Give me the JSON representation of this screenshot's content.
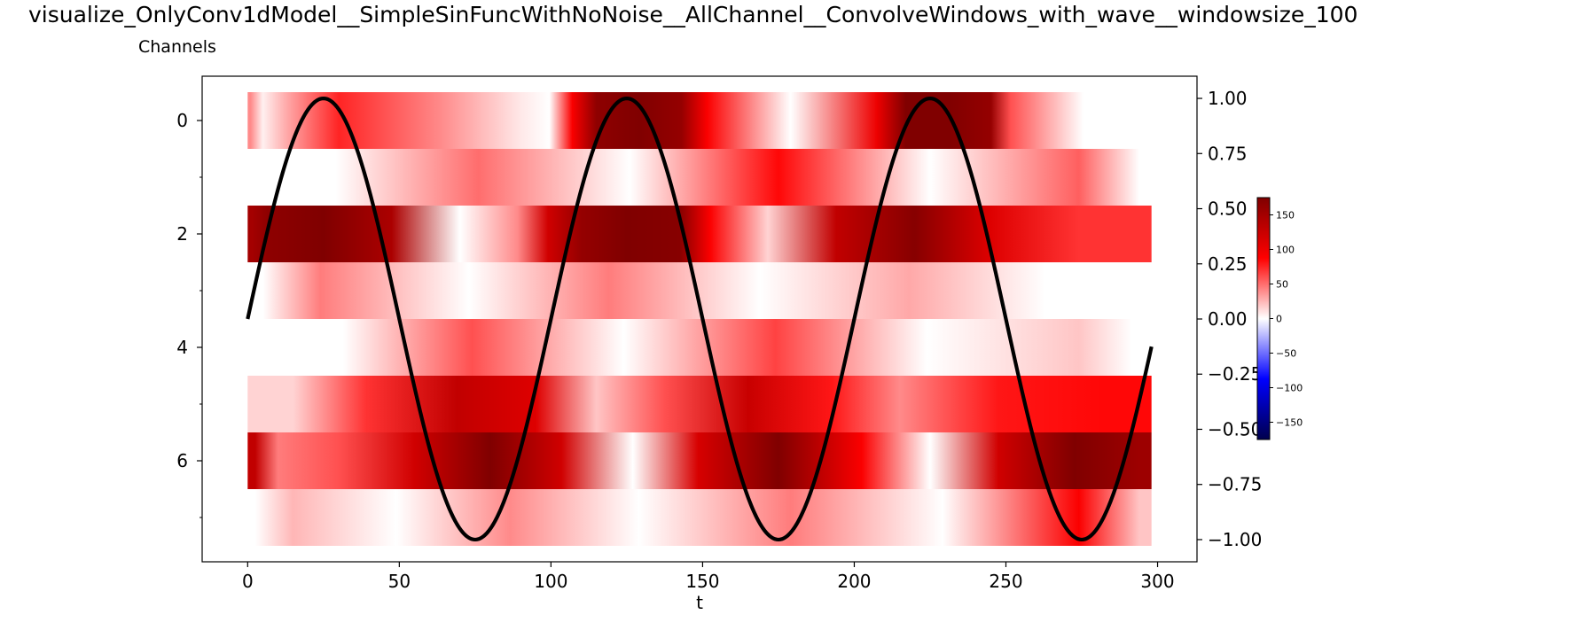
{
  "chart_data": {
    "type": "heatmap",
    "title": "visualize_OnlyConv1dModel__SimpleSinFuncWithNoNoise__AllChannel__ConvolveWindows_with_wave__windowsize_100",
    "ylabel": "Channels",
    "xlabel": "t",
    "xlim": [
      -15,
      313
    ],
    "x_ticks": [
      "0",
      "50",
      "100",
      "150",
      "200",
      "250",
      "300"
    ],
    "y_ticks": [
      "0",
      "2",
      "4",
      "6"
    ],
    "y_ticks_minor": [
      1,
      3,
      5,
      7
    ],
    "channels": 8,
    "t_range": [
      0,
      298
    ],
    "y2lim": [
      -1.08,
      1.08
    ],
    "y2_ticks": [
      "1.00",
      "0.75",
      "0.50",
      "0.25",
      "0.00",
      "−0.25",
      "−0.50",
      "−0.75",
      "−1.00"
    ],
    "colormap": "seismic",
    "color_range": [
      -175,
      175
    ],
    "colorbar_ticks": [
      "150",
      "100",
      "50",
      "0",
      "−50",
      "−100",
      "−150"
    ],
    "grid": false,
    "heatmap_rows": [
      {
        "channel": 0,
        "segments": [
          [
            0,
            2,
            40
          ],
          [
            2,
            8,
            5
          ],
          [
            8,
            18,
            30
          ],
          [
            18,
            42,
            75
          ],
          [
            42,
            85,
            40
          ],
          [
            85,
            95,
            8
          ],
          [
            95,
            104,
            0
          ],
          [
            104,
            110,
            90
          ],
          [
            110,
            120,
            165
          ],
          [
            120,
            138,
            185
          ],
          [
            138,
            148,
            160
          ],
          [
            148,
            155,
            90
          ],
          [
            155,
            203,
            0
          ],
          [
            203,
            212,
            100
          ],
          [
            212,
            222,
            175
          ],
          [
            222,
            240,
            200
          ],
          [
            240,
            250,
            160
          ],
          [
            250,
            253,
            60
          ],
          [
            253,
            298,
            0
          ]
        ]
      },
      {
        "channel": 1,
        "segments": [
          [
            0,
            58,
            0
          ],
          [
            58,
            94,
            50
          ],
          [
            94,
            158,
            0
          ],
          [
            158,
            192,
            85
          ],
          [
            192,
            258,
            0
          ],
          [
            258,
            290,
            55
          ],
          [
            290,
            298,
            0
          ]
        ]
      },
      {
        "channel": 2,
        "segments": [
          [
            0,
            3,
            150
          ],
          [
            3,
            10,
            165
          ],
          [
            10,
            40,
            175
          ],
          [
            40,
            55,
            145
          ],
          [
            55,
            85,
            0
          ],
          [
            85,
            93,
            40
          ],
          [
            93,
            105,
            120
          ],
          [
            105,
            115,
            160
          ],
          [
            115,
            135,
            200
          ],
          [
            135,
            150,
            170
          ],
          [
            150,
            155,
            90
          ],
          [
            155,
            188,
            15
          ],
          [
            188,
            200,
            130
          ],
          [
            200,
            240,
            170
          ],
          [
            240,
            250,
            110
          ],
          [
            250,
            298,
            70
          ]
        ]
      },
      {
        "channel": 3,
        "segments": [
          [
            0,
            10,
            0
          ],
          [
            10,
            38,
            45
          ],
          [
            38,
            108,
            0
          ],
          [
            108,
            130,
            45
          ],
          [
            130,
            208,
            0
          ],
          [
            208,
            228,
            30
          ],
          [
            228,
            298,
            0
          ]
        ]
      },
      {
        "channel": 4,
        "segments": [
          [
            0,
            63,
            0
          ],
          [
            63,
            85,
            60
          ],
          [
            85,
            163,
            0
          ],
          [
            163,
            185,
            65
          ],
          [
            185,
            263,
            0
          ],
          [
            263,
            285,
            20
          ],
          [
            285,
            298,
            0
          ]
        ]
      },
      {
        "channel": 5,
        "segments": [
          [
            0,
            30,
            15
          ],
          [
            30,
            48,
            70
          ],
          [
            48,
            90,
            130
          ],
          [
            90,
            100,
            110
          ],
          [
            100,
            130,
            20
          ],
          [
            130,
            145,
            60
          ],
          [
            145,
            185,
            125
          ],
          [
            185,
            200,
            80
          ],
          [
            200,
            230,
            40
          ],
          [
            230,
            265,
            80
          ],
          [
            265,
            298,
            85
          ]
        ]
      },
      {
        "channel": 6,
        "segments": [
          [
            0,
            5,
            130
          ],
          [
            5,
            15,
            45
          ],
          [
            15,
            45,
            60
          ],
          [
            45,
            65,
            120
          ],
          [
            65,
            95,
            185
          ],
          [
            95,
            112,
            120
          ],
          [
            112,
            142,
            0
          ],
          [
            142,
            155,
            115
          ],
          [
            155,
            195,
            175
          ],
          [
            195,
            210,
            90
          ],
          [
            210,
            240,
            0
          ],
          [
            240,
            255,
            120
          ],
          [
            255,
            290,
            175
          ],
          [
            290,
            298,
            155
          ]
        ]
      },
      {
        "channel": 7,
        "segments": [
          [
            0,
            5,
            0
          ],
          [
            5,
            25,
            25
          ],
          [
            25,
            73,
            0
          ],
          [
            73,
            100,
            40
          ],
          [
            100,
            158,
            0
          ],
          [
            158,
            200,
            45
          ],
          [
            200,
            258,
            0
          ],
          [
            258,
            290,
            90
          ],
          [
            290,
            298,
            20
          ]
        ]
      }
    ],
    "series": [
      {
        "type": "line",
        "axis": "y2",
        "function": "sin",
        "amplitude": 1,
        "period": 100,
        "x_start": 0,
        "x_end": 298,
        "color": "#000000"
      }
    ]
  }
}
